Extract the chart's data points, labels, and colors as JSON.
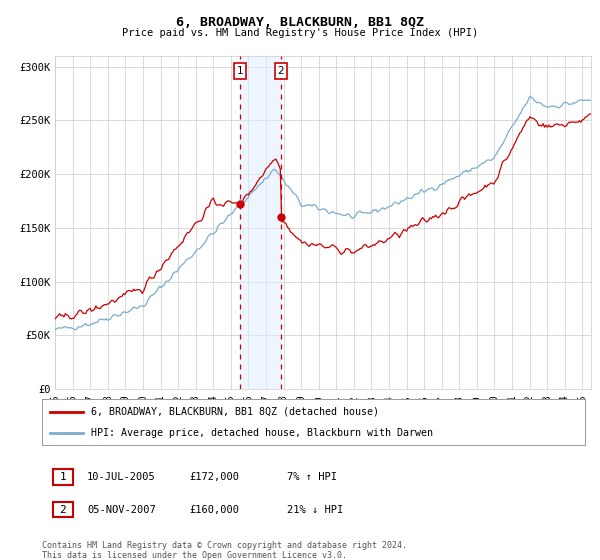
{
  "title": "6, BROADWAY, BLACKBURN, BB1 8QZ",
  "subtitle": "Price paid vs. HM Land Registry's House Price Index (HPI)",
  "ylabel_ticks": [
    "£0",
    "£50K",
    "£100K",
    "£150K",
    "£200K",
    "£250K",
    "£300K"
  ],
  "ytick_values": [
    0,
    50000,
    100000,
    150000,
    200000,
    250000,
    300000
  ],
  "ylim": [
    0,
    310000
  ],
  "xlim_start": 1995.0,
  "xlim_end": 2025.5,
  "background_color": "#ffffff",
  "grid_color": "#cccccc",
  "hpi_color": "#7aadcf",
  "price_color": "#cc0000",
  "transaction1": {
    "date": "10-JUL-2005",
    "price": 172000,
    "hpi_diff": "7% ↑ HPI",
    "label": "1",
    "year": 2005.53
  },
  "transaction2": {
    "date": "05-NOV-2007",
    "price": 160000,
    "hpi_diff": "21% ↓ HPI",
    "label": "2",
    "year": 2007.84
  },
  "legend_property": "6, BROADWAY, BLACKBURN, BB1 8QZ (detached house)",
  "legend_hpi": "HPI: Average price, detached house, Blackburn with Darwen",
  "footnote": "Contains HM Land Registry data © Crown copyright and database right 2024.\nThis data is licensed under the Open Government Licence v3.0.",
  "xtick_years": [
    1995,
    1996,
    1997,
    1998,
    1999,
    2000,
    2001,
    2002,
    2003,
    2004,
    2005,
    2006,
    2007,
    2008,
    2009,
    2010,
    2011,
    2012,
    2013,
    2014,
    2015,
    2016,
    2017,
    2018,
    2019,
    2020,
    2021,
    2022,
    2023,
    2024,
    2025
  ]
}
